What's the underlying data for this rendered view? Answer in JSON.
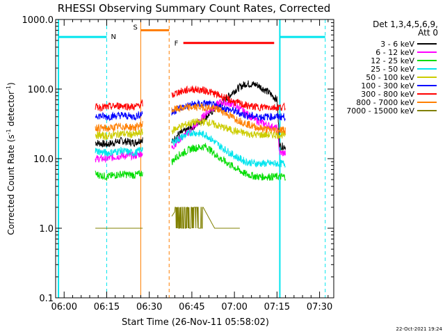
{
  "chart_data": {
    "type": "line",
    "title": "RHESSI Observing Summary Count Rates, Corrected",
    "xlabel": "Start Time (26-Nov-11 05:58:02)",
    "ylabel_main": "Corrected Count Rate (s",
    "ylabel_sup1": "-1",
    "ylabel_mid": " detector",
    "ylabel_sup2": "-1",
    "ylabel_end": ")",
    "yscale": "log",
    "ylim": [
      0.1,
      1000
    ],
    "xlim_minutes": [
      -3,
      95
    ],
    "x_tick_labels": [
      "06:00",
      "06:15",
      "06:30",
      "06:45",
      "07:00",
      "07:15",
      "07:30"
    ],
    "x_tick_minutes": [
      0,
      15,
      30,
      45,
      60,
      75,
      90
    ],
    "y_tick_labels": [
      "0.1",
      "1.0",
      "10.0",
      "100.0",
      "1000.0"
    ],
    "y_tick_values": [
      0.1,
      1,
      10,
      100,
      1000
    ],
    "legend_header": [
      "Det 1,3,4,5,6,9,",
      "Att 0"
    ],
    "legend_position": "right",
    "timestamp": "22-Oct-2021 19:24",
    "flags": [
      {
        "label": "N",
        "color": "#00e5ee"
      },
      {
        "label": "S",
        "color": "#ff7f00"
      },
      {
        "label": "F",
        "color": "#ff0000"
      }
    ],
    "intervals": {
      "night": [
        [
          -2,
          15
        ],
        [
          76,
          92
        ]
      ],
      "saa": [
        27,
        37
      ],
      "flare": [
        42,
        74
      ]
    },
    "series": [
      {
        "name": "3 - 6 keV",
        "color": "#000000",
        "times": [
          11,
          15,
          20,
          25,
          27.5,
          38,
          40,
          45,
          50,
          55,
          60,
          64,
          68,
          72,
          75,
          76,
          78
        ],
        "values": [
          17,
          16,
          18,
          17,
          19,
          17,
          22,
          28,
          40,
          60,
          95,
          120,
          115,
          90,
          70,
          15,
          15
        ]
      },
      {
        "name": "6 - 12 keV",
        "color": "#ff00ff",
        "times": [
          11,
          15,
          20,
          25,
          27.5,
          38,
          40,
          45,
          50,
          55,
          60,
          64,
          68,
          72,
          75,
          76,
          78
        ],
        "values": [
          10,
          10,
          11,
          11,
          12,
          14,
          18,
          26,
          45,
          65,
          60,
          45,
          35,
          30,
          27,
          12,
          12
        ]
      },
      {
        "name": "12 - 25 keV",
        "color": "#00dd00",
        "times": [
          11,
          15,
          20,
          25,
          27.5,
          38,
          40,
          45,
          50,
          55,
          60,
          64,
          68,
          72,
          75,
          76,
          78
        ],
        "values": [
          6,
          5.5,
          6,
          5.8,
          6.2,
          9,
          11,
          14,
          15,
          10,
          7.5,
          6,
          5.5,
          5.5,
          5.5,
          5.5,
          5.5
        ]
      },
      {
        "name": "25 - 50 keV",
        "color": "#00e5ee",
        "times": [
          11,
          15,
          20,
          25,
          27.5,
          38,
          40,
          45,
          50,
          55,
          60,
          64,
          68,
          72,
          75,
          76,
          78
        ],
        "values": [
          13,
          12,
          13,
          12,
          14,
          17,
          19,
          24,
          22,
          15,
          11,
          9,
          8.5,
          8.5,
          8.5,
          8.5,
          8.5
        ]
      },
      {
        "name": "50 - 100 keV",
        "color": "#cccc00",
        "times": [
          11,
          15,
          20,
          25,
          27.5,
          38,
          40,
          45,
          50,
          55,
          60,
          64,
          68,
          72,
          75,
          76,
          78
        ],
        "values": [
          22,
          21,
          23,
          22,
          24,
          25,
          28,
          33,
          34,
          29,
          25,
          23,
          22,
          22,
          22,
          22,
          22
        ]
      },
      {
        "name": "100 - 300 keV",
        "color": "#0000ff",
        "times": [
          11,
          15,
          20,
          25,
          27.5,
          38,
          40,
          45,
          50,
          55,
          60,
          64,
          68,
          72,
          75,
          76,
          78
        ],
        "values": [
          42,
          40,
          42,
          40,
          45,
          45,
          52,
          60,
          62,
          55,
          48,
          42,
          40,
          40,
          40,
          40,
          40
        ]
      },
      {
        "name": "300 - 800 keV",
        "color": "#ff0000",
        "times": [
          11,
          15,
          20,
          25,
          27.5,
          38,
          40,
          45,
          50,
          55,
          60,
          64,
          68,
          72,
          75,
          76,
          78
        ],
        "values": [
          55,
          55,
          58,
          55,
          62,
          80,
          90,
          100,
          95,
          80,
          65,
          58,
          55,
          55,
          55,
          55,
          55
        ]
      },
      {
        "name": "800 - 7000 keV",
        "color": "#ff7f00",
        "times": [
          11,
          15,
          20,
          25,
          27.5,
          38,
          40,
          45,
          50,
          55,
          60,
          64,
          68,
          72,
          75,
          76,
          78
        ],
        "values": [
          28,
          27,
          29,
          28,
          31,
          50,
          52,
          55,
          55,
          50,
          38,
          32,
          28,
          26,
          26,
          26,
          26
        ]
      },
      {
        "name": "7000 - 15000 keV",
        "color": "#808000",
        "times": [
          11,
          28,
          38,
          40,
          45,
          49,
          53,
          58,
          62
        ],
        "values": [
          1,
          1,
          1.5,
          2,
          2,
          2,
          1,
          1,
          1
        ]
      }
    ]
  }
}
